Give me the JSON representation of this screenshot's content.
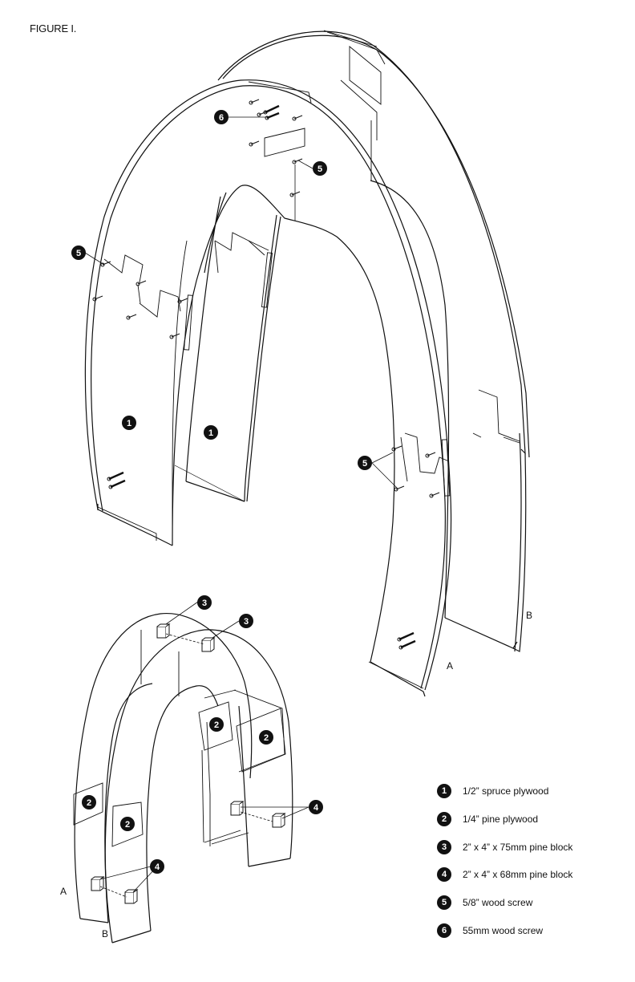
{
  "figure_title": "FIGURE I.",
  "legend": [
    {
      "num": "1",
      "text": "1/2” spruce plywood"
    },
    {
      "num": "2",
      "text": "1/4” pine plywood"
    },
    {
      "num": "3",
      "text": "2” x 4” x 75mm pine block"
    },
    {
      "num": "4",
      "text": "2” x 4” x 68mm pine block"
    },
    {
      "num": "5",
      "text": "5/8” wood screw"
    },
    {
      "num": "6",
      "text": "55mm wood screw"
    }
  ],
  "labels": {
    "upper_a": "A",
    "upper_b": "B",
    "lower_a": "A",
    "lower_b": "B"
  },
  "callouts": {
    "c6": "6",
    "c5_top": "5",
    "c5_left": "5",
    "c5_right": "5",
    "c1_left": "1",
    "c1_right": "1",
    "c3_top": "3",
    "c3_mid": "3",
    "c2_a": "2",
    "c2_b": "2",
    "c2_c": "2",
    "c2_d": "2",
    "c4_right": "4",
    "c4_left": "4"
  }
}
